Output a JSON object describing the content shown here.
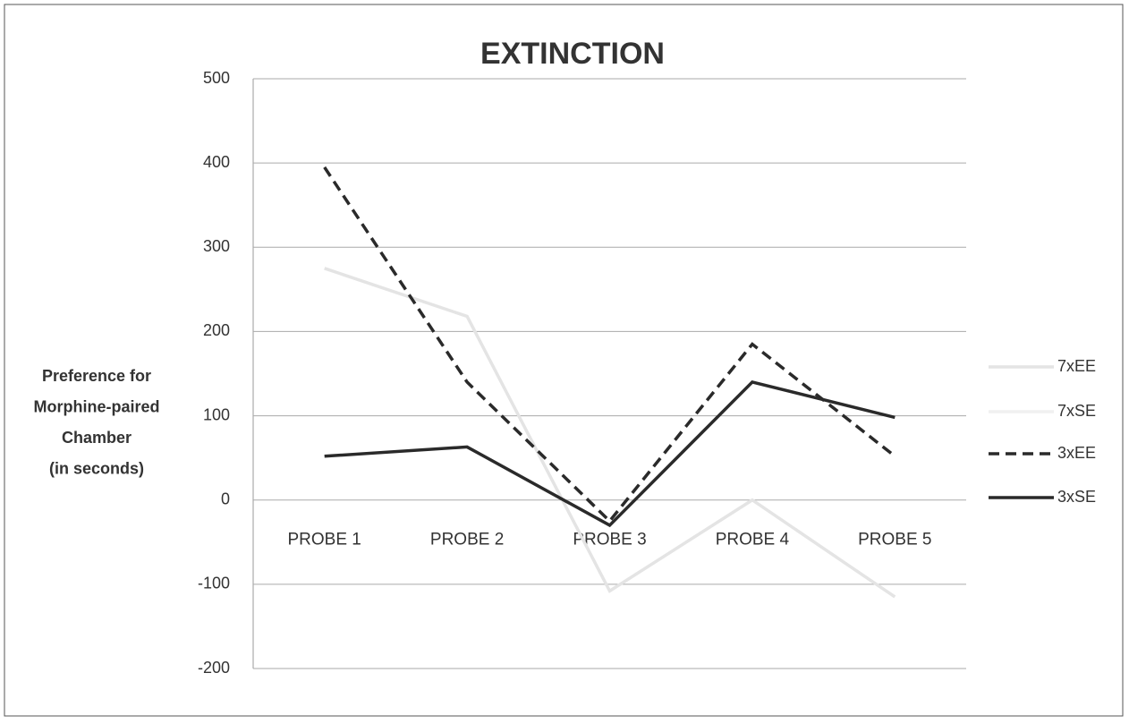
{
  "chart_data": {
    "type": "line",
    "title": "EXTINCTION",
    "y_label": [
      "Preference for",
      "Morphine-paired",
      "Chamber",
      "(in seconds)"
    ],
    "categories": [
      "PROBE 1",
      "PROBE 2",
      "PROBE 3",
      "PROBE 4",
      "PROBE 5"
    ],
    "series": [
      {
        "name": "7xEE",
        "color": "#e4e4e4",
        "dash": false,
        "values": [
          275,
          218,
          -108,
          0,
          -115
        ]
      },
      {
        "name": "7xSE",
        "color": "#f0f0f0",
        "dash": false,
        "values": [
          null,
          null,
          null,
          null,
          null
        ]
      },
      {
        "name": "3xEE",
        "color": "#2a2a2a",
        "dash": true,
        "values": [
          395,
          140,
          -25,
          185,
          52
        ]
      },
      {
        "name": "3xSE",
        "color": "#2a2a2a",
        "dash": false,
        "values": [
          52,
          63,
          -30,
          140,
          98
        ]
      }
    ],
    "ylim": [
      -200,
      500
    ],
    "yticks": [
      -200,
      -100,
      0,
      100,
      200,
      300,
      400,
      500
    ],
    "grid": true,
    "legend": "right"
  }
}
